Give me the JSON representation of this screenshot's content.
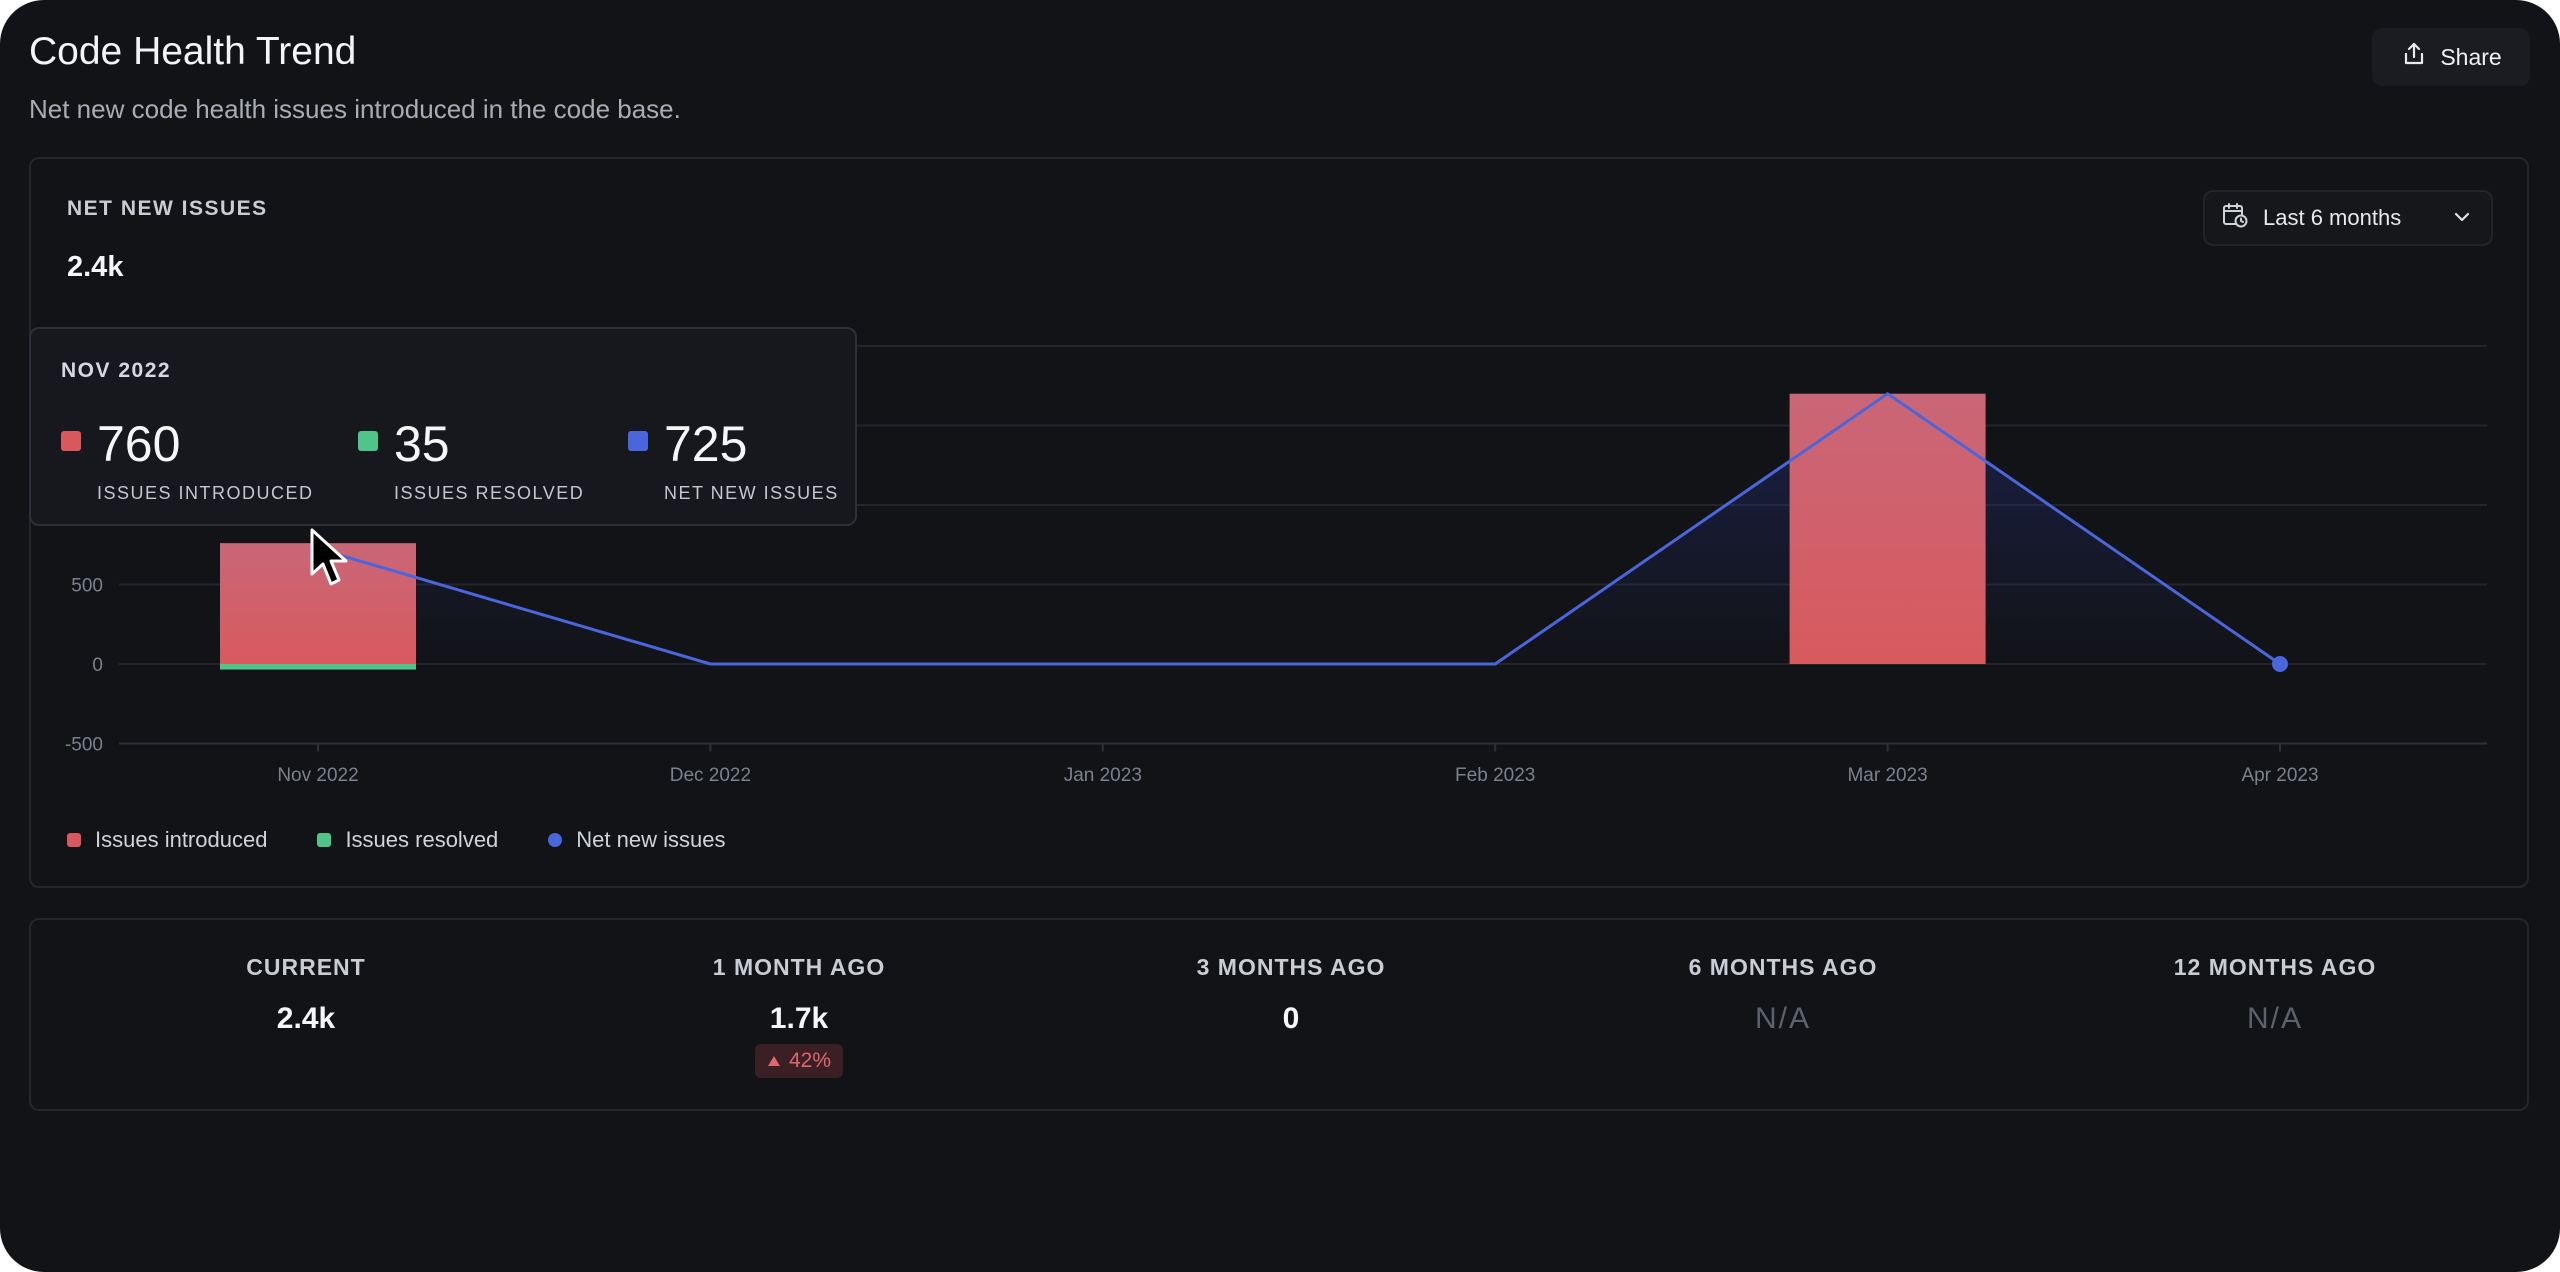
{
  "header": {
    "title": "Code Health Trend",
    "subtitle": "Net new code health issues introduced in the code base.",
    "share_label": "Share"
  },
  "metric": {
    "label": "NET NEW ISSUES",
    "value": "2.4k"
  },
  "range_select": {
    "label": "Last 6 months"
  },
  "tooltip": {
    "month": "NOV 2022",
    "items": [
      {
        "value": "760",
        "label": "ISSUES INTRODUCED",
        "color": "#d9585e"
      },
      {
        "value": "35",
        "label": "ISSUES RESOLVED",
        "color": "#4fc48b"
      },
      {
        "value": "725",
        "label": "NET NEW ISSUES",
        "color": "#4a66dd"
      }
    ]
  },
  "legend": [
    {
      "label": "Issues introduced",
      "color": "#d9585e"
    },
    {
      "label": "Issues resolved",
      "color": "#4fc48b"
    },
    {
      "label": "Net new issues",
      "color": "#4a66dd"
    }
  ],
  "chart_data": {
    "type": "bar",
    "title": "NET NEW ISSUES",
    "categories": [
      "Nov 2022",
      "Dec 2022",
      "Jan 2023",
      "Feb 2023",
      "Mar 2023",
      "Apr 2023"
    ],
    "series": [
      {
        "name": "Issues introduced",
        "type": "bar",
        "color": "#d9585e",
        "values": [
          760,
          0,
          0,
          0,
          1700,
          0
        ]
      },
      {
        "name": "Issues resolved",
        "type": "bar",
        "color": "#4fc48b",
        "values": [
          35,
          0,
          0,
          0,
          0,
          0
        ]
      },
      {
        "name": "Net new issues",
        "type": "line",
        "color": "#4a66dd",
        "values": [
          725,
          0,
          0,
          0,
          1700,
          0
        ]
      }
    ],
    "yticks": [
      -500,
      0,
      500
    ],
    "ylim": [
      -500,
      2000
    ],
    "xlabel": "",
    "ylabel": "",
    "grid": true,
    "legend": "bottom-left"
  },
  "stats": [
    {
      "label": "CURRENT",
      "value": "2.4k",
      "na": false
    },
    {
      "label": "1 MONTH AGO",
      "value": "1.7k",
      "na": false,
      "change": "42%"
    },
    {
      "label": "3 MONTHS AGO",
      "value": "0",
      "na": false
    },
    {
      "label": "6 MONTHS AGO",
      "value": "N/A",
      "na": true
    },
    {
      "label": "12 MONTHS AGO",
      "value": "N/A",
      "na": true
    }
  ]
}
